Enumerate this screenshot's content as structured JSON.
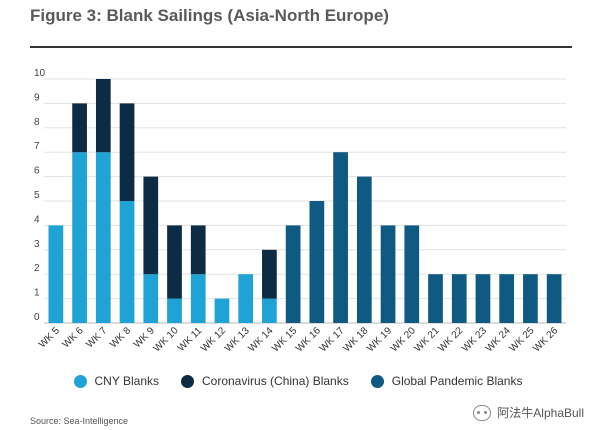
{
  "header": {
    "title": "Figure 3: Blank Sailings (Asia-North Europe)"
  },
  "source": "Source: Sea-Intelligence",
  "watermark": "阿法牛AlphaBull",
  "chart_data": {
    "type": "bar",
    "stacked": true,
    "title": "Figure 3: Blank Sailings (Asia-North Europe)",
    "xlabel": "",
    "ylabel": "",
    "ylim": [
      0,
      10
    ],
    "yticks": [
      "0",
      "1",
      "2",
      "3",
      "4",
      "5",
      "6",
      "7",
      "8",
      "9",
      "10"
    ],
    "grid": true,
    "legend": "bottom",
    "categories": [
      "WK 5",
      "WK 6",
      "WK 7",
      "WK 8",
      "WK 9",
      "WK 10",
      "WK 11",
      "WK 12",
      "WK 13",
      "WK 14",
      "WK 15",
      "WK 16",
      "WK 17",
      "WK 18",
      "WK 19",
      "WK 20",
      "WK 21",
      "WK 22",
      "WK 23",
      "WK 24",
      "WK 25",
      "WK 26"
    ],
    "series": [
      {
        "name": "CNY Blanks",
        "color": "#1fa2d6",
        "values": [
          4,
          7,
          7,
          5,
          2,
          1,
          2,
          1,
          2,
          1,
          0,
          0,
          0,
          0,
          0,
          0,
          0,
          0,
          0,
          0,
          0,
          0
        ]
      },
      {
        "name": "Coronavirus (China) Blanks",
        "color": "#0c2b44",
        "values": [
          0,
          2,
          3,
          4,
          4,
          3,
          2,
          0,
          0,
          2,
          0,
          0,
          0,
          0,
          0,
          0,
          0,
          0,
          0,
          0,
          0,
          0
        ]
      },
      {
        "name": "Global Pandemic Blanks",
        "color": "#0e5a82",
        "values": [
          0,
          0,
          0,
          0,
          0,
          0,
          0,
          0,
          0,
          0,
          4,
          5,
          7,
          6,
          4,
          4,
          2,
          2,
          2,
          2,
          2,
          2
        ]
      }
    ]
  }
}
